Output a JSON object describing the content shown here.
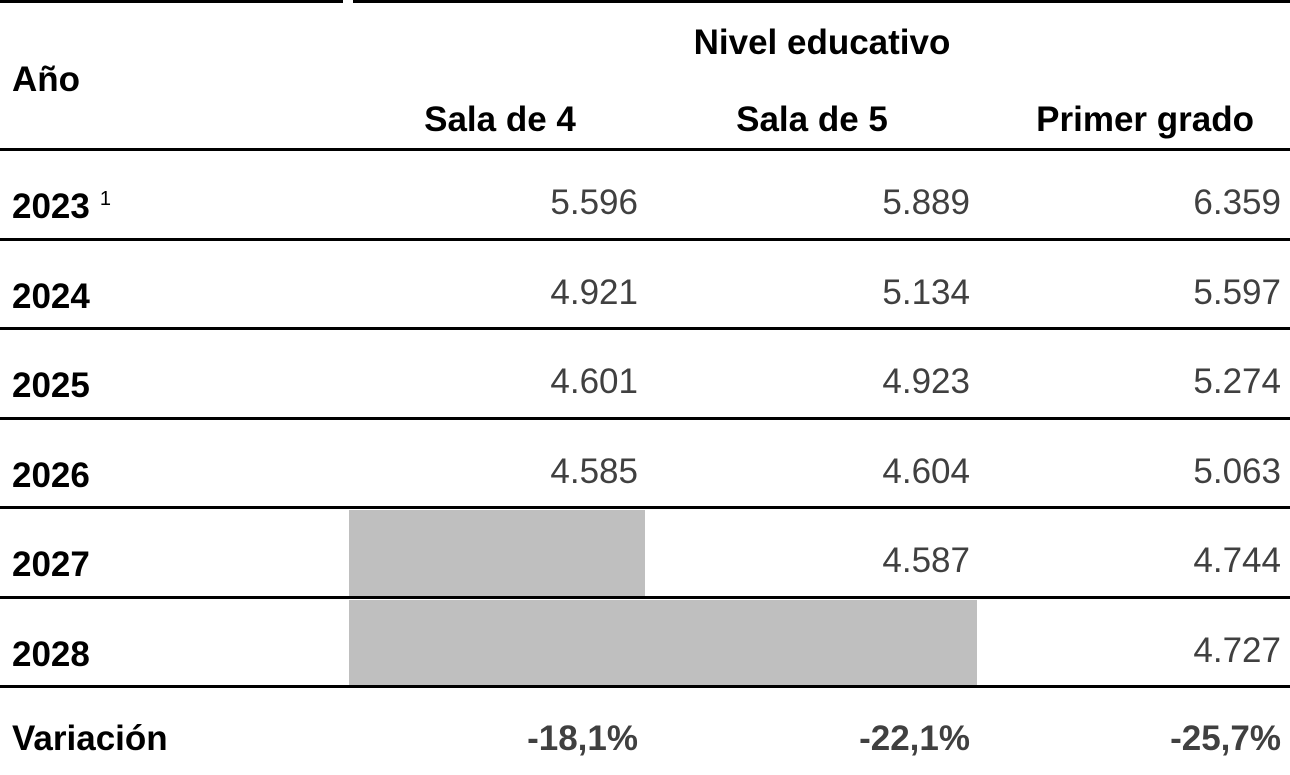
{
  "header": {
    "year_label": "Año",
    "group_label": "Nivel educativo",
    "columns": [
      "Sala de 4",
      "Sala de 5",
      "Primer grado"
    ]
  },
  "rows": [
    {
      "year": "2023",
      "note": "1",
      "values": [
        "5.596",
        "5.889",
        "6.359"
      ]
    },
    {
      "year": "2024",
      "values": [
        "4.921",
        "5.134",
        "5.597"
      ]
    },
    {
      "year": "2025",
      "values": [
        "4.601",
        "4.923",
        "5.274"
      ]
    },
    {
      "year": "2026",
      "values": [
        "4.585",
        "4.604",
        "5.063"
      ]
    },
    {
      "year": "2027",
      "values": [
        null,
        "4.587",
        "4.744"
      ]
    },
    {
      "year": "2028",
      "values": [
        null,
        null,
        "4.727"
      ]
    }
  ],
  "footer": {
    "label": "Variación",
    "values": [
      "-18,1%",
      "-22,1%",
      "-25,7%"
    ]
  }
}
